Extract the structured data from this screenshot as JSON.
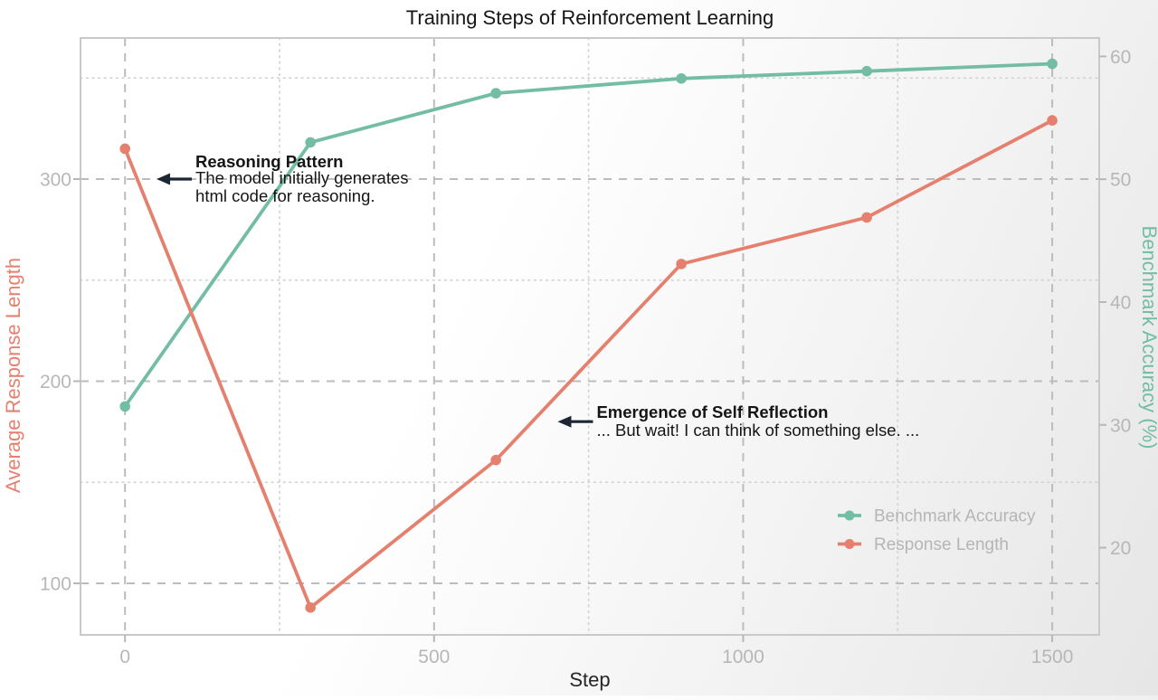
{
  "title": "Training Steps of Reinforcement Learning",
  "chart_data": {
    "type": "line",
    "x": [
      0,
      300,
      600,
      900,
      1200,
      1500
    ],
    "series": [
      {
        "name": "Benchmark Accuracy",
        "axis": "right",
        "color": "#72bda3",
        "values": [
          31.5,
          53,
          57,
          58.2,
          58.8,
          59.4
        ]
      },
      {
        "name": "Response Length",
        "axis": "left",
        "color": "#e5806f",
        "values": [
          315,
          88,
          161,
          258,
          281,
          329
        ]
      }
    ],
    "xlabel": "Step",
    "ylabel_left": "Average Response Length",
    "ylabel_right": "Benchmark Accuracy (%)",
    "x_ticks": [
      0,
      500,
      1000,
      1500
    ],
    "x_minor_ticks": [
      250,
      750,
      1250
    ],
    "left_ticks": [
      100,
      200,
      300
    ],
    "left_minor_ticks": [
      150,
      250,
      350
    ],
    "right_ticks": [
      20,
      30,
      40,
      50,
      60
    ],
    "xlim": [
      -72,
      1576
    ],
    "ylim_left": [
      74.5,
      369.8
    ],
    "ylim_right": [
      12.9,
      61.5
    ],
    "grid": {
      "major": "dashed",
      "minor": "dotted"
    },
    "legend": {
      "position": "lower right",
      "entries": [
        "Benchmark Accuracy",
        "Response Length"
      ]
    },
    "annotations": [
      {
        "title": "Reasoning Pattern",
        "lines": [
          "The model initially generates",
          "html code for reasoning."
        ],
        "step": 51,
        "value_left": 300
      },
      {
        "title": "Emergence of Self Reflection",
        "lines": [
          "... But wait! I can think of something else. ..."
        ],
        "step": 700,
        "value_left": 180
      }
    ]
  },
  "colors": {
    "accent_teal": "#72bda3",
    "accent_salmon": "#e5806f",
    "tick_label": "#b7b7b7",
    "legend_text": "#b5b5b5",
    "grid_major": "#bcbcbc",
    "grid_minor": "#d4d4d4",
    "panel_border": "#c9c9c9",
    "annotation_text": "#151515",
    "arrow": "#1c2733",
    "title_text": "#161616",
    "xlabel_text": "#262626"
  }
}
